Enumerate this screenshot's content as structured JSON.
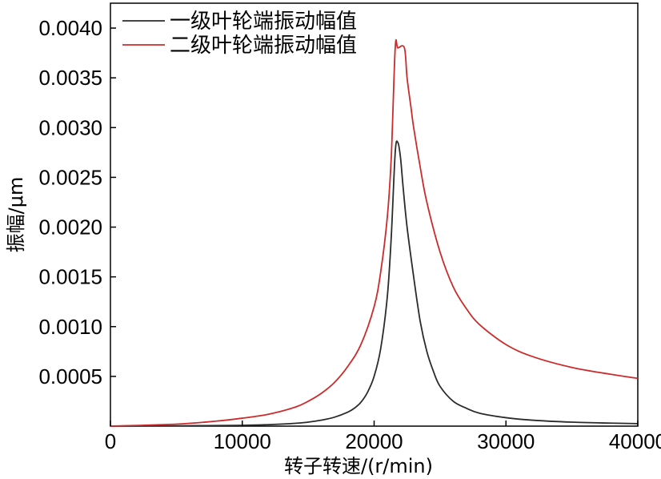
{
  "chart_data": {
    "type": "line",
    "title": "",
    "xlabel": "转子转速/(r/min)",
    "ylabel": "振幅/μm",
    "xlim": [
      0,
      40000
    ],
    "ylim": [
      0,
      0.00425
    ],
    "xticks": [
      0,
      10000,
      20000,
      30000,
      40000
    ],
    "xtick_labels": [
      "0",
      "10000",
      "20000",
      "30000",
      "40000"
    ],
    "yticks": [
      0.0005,
      0.001,
      0.0015,
      0.002,
      0.0025,
      0.003,
      0.0035,
      0.004
    ],
    "ytick_labels": [
      "0.0005",
      "0.0010",
      "0.0015",
      "0.0020",
      "0.0025",
      "0.0030",
      "0.0035",
      "0.0040"
    ],
    "grid": false,
    "legend_position": "top-left",
    "series": [
      {
        "name": "一级叶轮端振动幅值",
        "color": "#2b2b2b",
        "x": [
          0,
          5000,
          10000,
          12000,
          14000,
          15000,
          16000,
          17000,
          18000,
          18500,
          19000,
          19500,
          20000,
          20500,
          21000,
          21300,
          21600,
          21800,
          22000,
          22200,
          22500,
          23000,
          23500,
          24000,
          24500,
          25000,
          26000,
          27000,
          28000,
          30000,
          32000,
          35000,
          38000,
          40000
        ],
        "y": [
          0.0,
          3e-06,
          8e-06,
          1.5e-05,
          2.8e-05,
          4e-05,
          6e-05,
          9e-05,
          0.00014,
          0.00018,
          0.00024,
          0.00034,
          0.0005,
          0.00078,
          0.0013,
          0.0019,
          0.00275,
          0.00285,
          0.0027,
          0.0024,
          0.002,
          0.0015,
          0.00105,
          0.00075,
          0.00055,
          0.0004,
          0.00025,
          0.00018,
          0.00013,
          8.5e-05,
          6e-05,
          4e-05,
          3e-05,
          2.5e-05
        ]
      },
      {
        "name": "二级叶轮端振动幅值",
        "color": "#cc2b2b",
        "x": [
          0,
          5000,
          8000,
          10000,
          12000,
          14000,
          15000,
          16000,
          17000,
          18000,
          19000,
          20000,
          20500,
          21000,
          21300,
          21600,
          21800,
          22300,
          22500,
          22800,
          23000,
          23500,
          24000,
          25000,
          26000,
          27000,
          28000,
          30000,
          32000,
          35000,
          38000,
          40000
        ],
        "y": [
          0.0,
          2e-05,
          5e-05,
          8e-05,
          0.00012,
          0.00019,
          0.00025,
          0.00033,
          0.00044,
          0.0006,
          0.00082,
          0.0012,
          0.00155,
          0.0021,
          0.0027,
          0.0038,
          0.0038,
          0.0038,
          0.0035,
          0.0032,
          0.003,
          0.0026,
          0.00225,
          0.00175,
          0.0014,
          0.00118,
          0.00102,
          0.00082,
          0.0007,
          0.00059,
          0.00052,
          0.00048
        ]
      }
    ]
  }
}
